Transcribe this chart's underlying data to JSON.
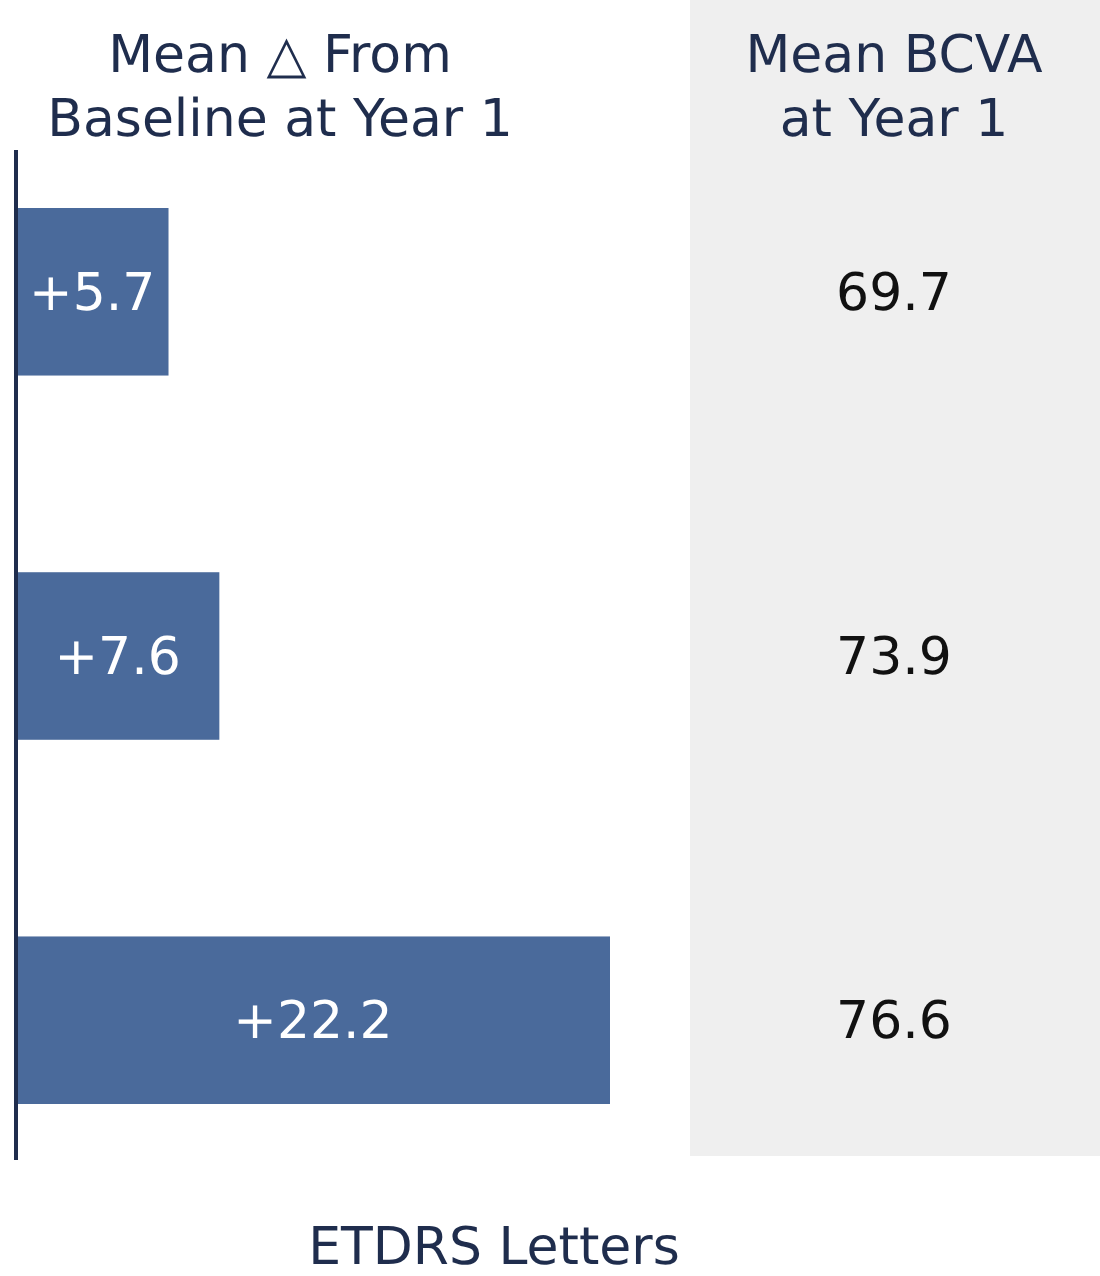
{
  "chart_data": {
    "type": "bar",
    "orientation": "horizontal",
    "title": "Mean △ From Baseline at Year 1",
    "xlabel": "ETDRS Letters",
    "categories": [
      null,
      null,
      null
    ],
    "values": [
      5.7,
      7.6,
      22.2
    ],
    "value_labels": [
      "+5.7",
      "+7.6",
      "+22.2"
    ],
    "color": "#4a6a9b",
    "annotations": [
      "Mean BCVA at Year 1",
      "69.7",
      "73.9",
      "76.6"
    ]
  }
}
